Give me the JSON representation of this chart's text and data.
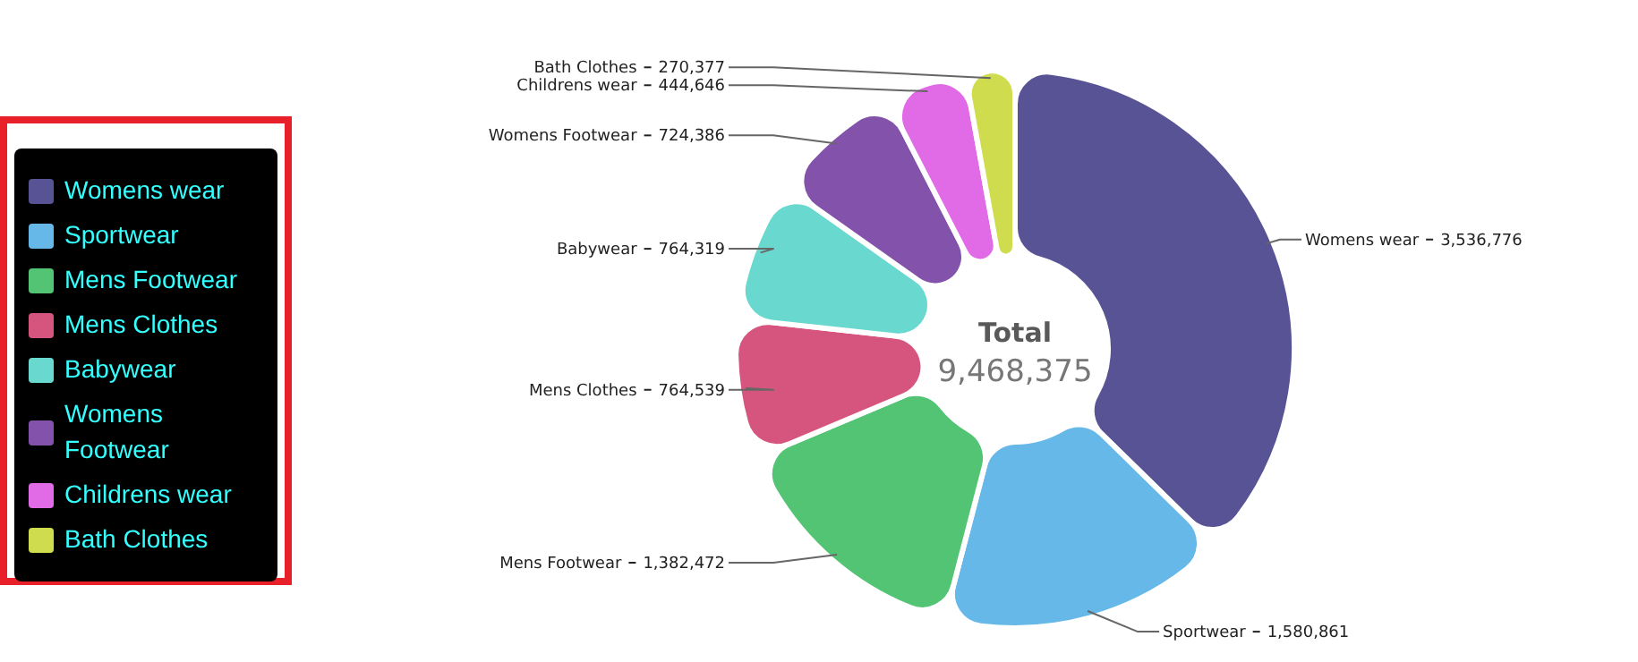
{
  "chart_data": {
    "type": "donut",
    "categories": [
      "Womens wear",
      "Sportwear",
      "Mens Footwear",
      "Mens Clothes",
      "Babywear",
      "Womens Footwear",
      "Childrens wear",
      "Bath Clothes"
    ],
    "values": [
      3536776,
      1580861,
      1382472,
      764539,
      764319,
      724386,
      444646,
      270377
    ],
    "value_labels": [
      "3,536,776",
      "1,580,861",
      "1,382,472",
      "764,539",
      "764,319",
      "724,386",
      "444,646",
      "270,377"
    ],
    "colors": [
      "#575394",
      "#65b8e8",
      "#52c474",
      "#d6557f",
      "#69d8cf",
      "#8352aa",
      "#e16ae6",
      "#cfdc4e"
    ],
    "annotations": [
      "Total",
      "9,468,375"
    ],
    "legend": "left"
  }
}
